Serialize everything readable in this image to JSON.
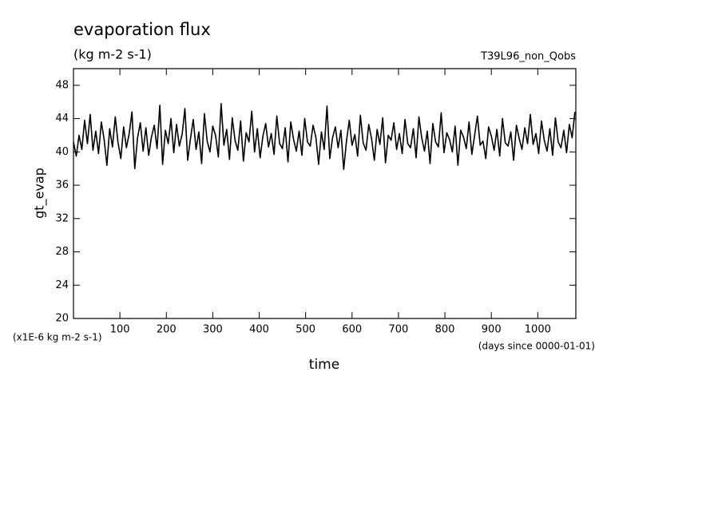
{
  "chart_data": {
    "type": "line",
    "title": "evaporation flux",
    "subtitle": "(kg m-2 s-1)",
    "run_label": "T39L96_non_Qobs",
    "ylabel": "gt_evap",
    "xlabel": "time",
    "y_units_note": "(x1E-6 kg m-2 s-1)",
    "x_units_note": "(days since 0000-01-01)",
    "xlim": [
      0,
      1082
    ],
    "ylim": [
      20,
      50
    ],
    "xticks": [
      100,
      200,
      300,
      400,
      500,
      600,
      700,
      800,
      900,
      1000
    ],
    "yticks": [
      20,
      24,
      28,
      32,
      36,
      40,
      44,
      48
    ],
    "x": [
      0,
      6,
      12,
      18,
      24,
      30,
      36,
      42,
      48,
      54,
      60,
      66,
      72,
      78,
      84,
      90,
      96,
      102,
      108,
      114,
      120,
      126,
      132,
      138,
      144,
      150,
      156,
      162,
      168,
      174,
      180,
      186,
      192,
      198,
      204,
      210,
      216,
      222,
      228,
      234,
      240,
      246,
      252,
      258,
      264,
      270,
      276,
      282,
      288,
      294,
      300,
      306,
      312,
      318,
      324,
      330,
      336,
      342,
      348,
      354,
      360,
      366,
      372,
      378,
      384,
      390,
      396,
      402,
      408,
      414,
      420,
      426,
      432,
      438,
      444,
      450,
      456,
      462,
      468,
      474,
      480,
      486,
      492,
      498,
      504,
      510,
      516,
      522,
      528,
      534,
      540,
      546,
      552,
      558,
      564,
      570,
      576,
      582,
      588,
      594,
      600,
      606,
      612,
      618,
      624,
      630,
      636,
      642,
      648,
      654,
      660,
      666,
      672,
      678,
      684,
      690,
      696,
      702,
      708,
      714,
      720,
      726,
      732,
      738,
      744,
      750,
      756,
      762,
      768,
      774,
      780,
      786,
      792,
      798,
      804,
      810,
      816,
      822,
      828,
      834,
      840,
      846,
      852,
      858,
      864,
      870,
      876,
      882,
      888,
      894,
      900,
      906,
      912,
      918,
      924,
      930,
      936,
      942,
      948,
      954,
      960,
      966,
      972,
      978,
      984,
      990,
      996,
      1002,
      1008,
      1014,
      1020,
      1026,
      1032,
      1038,
      1044,
      1050,
      1056,
      1062,
      1068,
      1074,
      1080
    ],
    "series": [
      {
        "color": "#000000",
        "values": [
          41.2,
          39.5,
          42.0,
          40.3,
          43.8,
          41.0,
          44.5,
          40.2,
          42.5,
          39.8,
          43.6,
          41.5,
          38.4,
          42.8,
          40.6,
          44.2,
          41.1,
          39.2,
          43.0,
          40.5,
          42.2,
          44.8,
          38.0,
          41.7,
          43.5,
          40.1,
          42.9,
          39.6,
          41.8,
          43.2,
          40.4,
          45.6,
          38.5,
          42.6,
          41.0,
          44.0,
          39.9,
          43.3,
          40.7,
          42.1,
          45.2,
          39.0,
          41.6,
          43.9,
          40.3,
          42.4,
          38.6,
          44.6,
          41.3,
          40.0,
          43.1,
          42.0,
          39.4,
          45.8,
          40.8,
          42.7,
          39.1,
          44.1,
          41.4,
          40.2,
          43.7,
          38.9,
          42.3,
          41.2,
          44.9,
          40.0,
          42.8,
          39.3,
          41.9,
          43.4,
          40.6,
          42.2,
          39.7,
          44.3,
          41.0,
          40.4,
          42.9,
          38.8,
          43.6,
          41.5,
          40.1,
          42.5,
          39.6,
          44.0,
          41.2,
          40.7,
          43.2,
          41.8,
          38.5,
          42.4,
          40.3,
          45.5,
          39.2,
          41.7,
          43.0,
          40.5,
          42.6,
          37.9,
          41.3,
          43.8,
          40.8,
          42.1,
          39.5,
          44.4,
          41.1,
          40.2,
          43.3,
          41.6,
          39.0,
          42.7,
          40.9,
          44.1,
          38.7,
          42.0,
          41.4,
          43.5,
          40.3,
          42.2,
          39.8,
          43.9,
          41.0,
          40.5,
          42.8,
          39.3,
          44.2,
          41.7,
          40.1,
          42.5,
          38.6,
          43.4,
          41.2,
          40.6,
          44.7,
          39.9,
          42.3,
          41.5,
          40.0,
          43.1,
          38.4,
          42.6,
          41.8,
          40.4,
          43.6,
          39.7,
          42.0,
          44.3,
          40.8,
          41.3,
          39.2,
          43.0,
          41.9,
          40.2,
          42.7,
          39.5,
          44.0,
          41.1,
          40.7,
          42.4,
          39.0,
          43.2,
          41.6,
          40.3,
          42.9,
          41.0,
          44.5,
          40.9,
          42.2,
          39.8,
          43.7,
          41.4,
          40.1,
          42.8,
          39.6,
          44.1,
          41.2,
          40.5,
          42.6,
          39.9,
          43.3,
          41.7,
          44.8
        ]
      }
    ]
  }
}
